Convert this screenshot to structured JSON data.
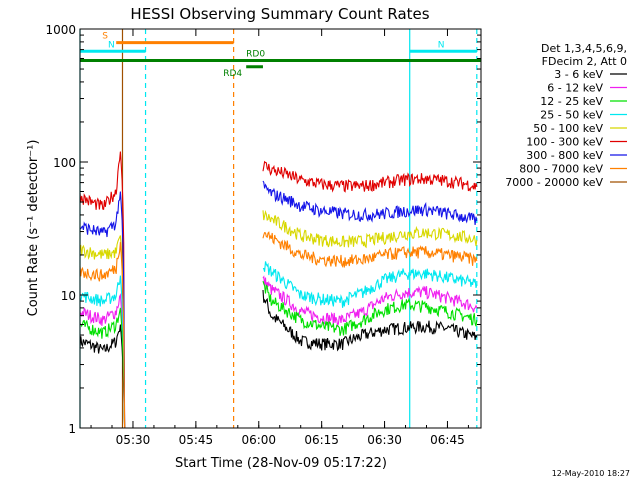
{
  "chart_data": {
    "type": "line",
    "title": "HESSI Observing Summary Count Rates",
    "xlabel": "Start Time (28-Nov-09 05:17:22)",
    "ylabel": "Count Rate (s⁻¹ detector⁻¹)",
    "yscale": "log",
    "ylim": [
      1,
      1000
    ],
    "xlim": [
      "05:17:22",
      "06:53:00"
    ],
    "x_ticks": [
      "05:30",
      "05:45",
      "06:00",
      "06:15",
      "06:30",
      "06:45"
    ],
    "y_ticks": [
      "1",
      "10",
      "100",
      "1000"
    ],
    "legend_header": [
      "Det 1,3,4,5,6,9,",
      "FDecim 2, Att 0"
    ],
    "footer_date": "12-May-2010 18:27",
    "series": [
      {
        "name": "3 - 6 keV",
        "color": "#000000",
        "points": [
          [
            "05:17:22",
            4.5
          ],
          [
            "05:20",
            4.2
          ],
          [
            "05:23",
            3.8
          ],
          [
            "05:26",
            4.5
          ],
          [
            "05:27",
            6
          ],
          [
            "05:28",
            1.0
          ],
          [
            "05:50",
            null
          ],
          [
            "06:01",
            10
          ],
          [
            "06:03",
            7
          ],
          [
            "06:07",
            5.5
          ],
          [
            "06:10",
            4.5
          ],
          [
            "06:15",
            4.3
          ],
          [
            "06:20",
            4.3
          ],
          [
            "06:25",
            5.0
          ],
          [
            "06:30",
            5.5
          ],
          [
            "06:35",
            5.7
          ],
          [
            "06:40",
            5.8
          ],
          [
            "06:45",
            5.6
          ],
          [
            "06:50",
            5.0
          ],
          [
            "06:52",
            4.8
          ]
        ]
      },
      {
        "name": "6 - 12 keV",
        "color": "#f020f0",
        "points": [
          [
            "05:17:22",
            7.5
          ],
          [
            "05:20",
            7.0
          ],
          [
            "05:23",
            6.5
          ],
          [
            "05:26",
            7.5
          ],
          [
            "05:27",
            10
          ],
          [
            "05:28",
            1.0
          ],
          [
            "05:50",
            null
          ],
          [
            "06:01",
            13
          ],
          [
            "06:03",
            11
          ],
          [
            "06:07",
            9
          ],
          [
            "06:10",
            7.5
          ],
          [
            "06:15",
            6.8
          ],
          [
            "06:20",
            6.5
          ],
          [
            "06:25",
            7.5
          ],
          [
            "06:30",
            9.5
          ],
          [
            "06:35",
            10.5
          ],
          [
            "06:40",
            10.5
          ],
          [
            "06:45",
            9.5
          ],
          [
            "06:50",
            8.5
          ],
          [
            "06:52",
            8.0
          ]
        ]
      },
      {
        "name": "12 - 25 keV",
        "color": "#00e000",
        "points": [
          [
            "05:17:22",
            6.0
          ],
          [
            "05:20",
            5.6
          ],
          [
            "05:23",
            5.2
          ],
          [
            "05:26",
            6.0
          ],
          [
            "05:27",
            8
          ],
          [
            "05:28",
            1.0
          ],
          [
            "05:50",
            null
          ],
          [
            "06:01",
            12
          ],
          [
            "06:03",
            9
          ],
          [
            "06:07",
            7.5
          ],
          [
            "06:10",
            6.5
          ],
          [
            "06:15",
            5.8
          ],
          [
            "06:20",
            5.5
          ],
          [
            "06:25",
            6.5
          ],
          [
            "06:30",
            7.8
          ],
          [
            "06:35",
            8.5
          ],
          [
            "06:40",
            8.2
          ],
          [
            "06:45",
            7.5
          ],
          [
            "06:50",
            6.8
          ],
          [
            "06:52",
            6.5
          ]
        ]
      },
      {
        "name": "25 - 50 keV",
        "color": "#00e8f0",
        "points": [
          [
            "05:17:22",
            10
          ],
          [
            "05:20",
            9.5
          ],
          [
            "05:23",
            9
          ],
          [
            "05:26",
            10
          ],
          [
            "05:27",
            14
          ],
          [
            "05:28",
            1.0
          ],
          [
            "05:50",
            null
          ],
          [
            "06:01",
            17
          ],
          [
            "06:03",
            15
          ],
          [
            "06:07",
            12
          ],
          [
            "06:10",
            10
          ],
          [
            "06:15",
            9.3
          ],
          [
            "06:20",
            9.0
          ],
          [
            "06:25",
            10.5
          ],
          [
            "06:30",
            13
          ],
          [
            "06:35",
            14.5
          ],
          [
            "06:40",
            14.5
          ],
          [
            "06:45",
            13.5
          ],
          [
            "06:50",
            12.5
          ],
          [
            "06:52",
            12
          ]
        ]
      },
      {
        "name": "50 - 100 keV",
        "color": "#d8d800",
        "points": [
          [
            "05:17:22",
            22
          ],
          [
            "05:20",
            21
          ],
          [
            "05:23",
            20
          ],
          [
            "05:26",
            21
          ],
          [
            "05:27",
            28
          ],
          [
            "05:28",
            1.0
          ],
          [
            "05:50",
            null
          ],
          [
            "06:01",
            40
          ],
          [
            "06:03",
            37
          ],
          [
            "06:07",
            32
          ],
          [
            "06:10",
            28
          ],
          [
            "06:15",
            26
          ],
          [
            "06:20",
            25
          ],
          [
            "06:25",
            25.5
          ],
          [
            "06:30",
            27
          ],
          [
            "06:35",
            29
          ],
          [
            "06:40",
            29.5
          ],
          [
            "06:45",
            28.5
          ],
          [
            "06:50",
            27
          ],
          [
            "06:52",
            26
          ]
        ]
      },
      {
        "name": "100 - 300 keV",
        "color": "#e00000",
        "points": [
          [
            "05:17:22",
            55
          ],
          [
            "05:20",
            50
          ],
          [
            "05:23",
            46
          ],
          [
            "05:26",
            60
          ],
          [
            "05:27",
            120
          ],
          [
            "05:28",
            1.0
          ],
          [
            "05:50",
            null
          ],
          [
            "06:01",
            95
          ],
          [
            "06:03",
            88
          ],
          [
            "06:07",
            80
          ],
          [
            "06:10",
            73
          ],
          [
            "06:15",
            68
          ],
          [
            "06:20",
            66
          ],
          [
            "06:25",
            66
          ],
          [
            "06:30",
            70
          ],
          [
            "06:35",
            74
          ],
          [
            "06:40",
            75
          ],
          [
            "06:45",
            72
          ],
          [
            "06:50",
            68
          ],
          [
            "06:52",
            65
          ]
        ]
      },
      {
        "name": "300 - 800 keV",
        "color": "#1414e8",
        "points": [
          [
            "05:17:22",
            33
          ],
          [
            "05:20",
            31
          ],
          [
            "05:23",
            29
          ],
          [
            "05:26",
            35
          ],
          [
            "05:27",
            60
          ],
          [
            "05:28",
            1.0
          ],
          [
            "05:50",
            null
          ],
          [
            "06:01",
            65
          ],
          [
            "06:03",
            58
          ],
          [
            "06:07",
            52
          ],
          [
            "06:10",
            47
          ],
          [
            "06:15",
            43
          ],
          [
            "06:20",
            41
          ],
          [
            "06:25",
            40
          ],
          [
            "06:30",
            41
          ],
          [
            "06:35",
            43
          ],
          [
            "06:40",
            44
          ],
          [
            "06:45",
            41
          ],
          [
            "06:50",
            38
          ],
          [
            "06:52",
            36
          ]
        ]
      },
      {
        "name": "800 - 7000 keV",
        "color": "#ff8000",
        "points": [
          [
            "05:17:22",
            15
          ],
          [
            "05:20",
            14.5
          ],
          [
            "05:23",
            14
          ],
          [
            "05:26",
            16
          ],
          [
            "05:27",
            25
          ],
          [
            "05:28",
            1.0
          ],
          [
            "05:50",
            null
          ],
          [
            "06:01",
            30
          ],
          [
            "06:03",
            27
          ],
          [
            "06:07",
            23
          ],
          [
            "06:10",
            20
          ],
          [
            "06:15",
            18.5
          ],
          [
            "06:20",
            18
          ],
          [
            "06:25",
            18.5
          ],
          [
            "06:30",
            20
          ],
          [
            "06:35",
            21
          ],
          [
            "06:40",
            21
          ],
          [
            "06:45",
            20
          ],
          [
            "06:50",
            19
          ],
          [
            "06:52",
            18
          ]
        ]
      },
      {
        "name": "7000 - 20000 keV",
        "color": "#a05000",
        "points": []
      }
    ],
    "attenuator_flags": [
      {
        "label": "S",
        "color": "#ff8000",
        "start": "05:26",
        "end": "05:54",
        "level": 790
      },
      {
        "label": "N",
        "color": "#00e8f0",
        "start": "05:17:22",
        "end": "05:33",
        "level": 680
      },
      {
        "label": "N",
        "color": "#00e8f0",
        "start": "06:36",
        "end": "06:52",
        "level": 680
      },
      {
        "label": "RD0",
        "color": "#008000",
        "start": "05:17:22",
        "end": "06:53",
        "level": 580
      },
      {
        "label": "RD4",
        "color": "#008000",
        "start": "05:57",
        "end": "06:01",
        "level": 520
      }
    ],
    "vertical_markers": [
      {
        "time": "05:17:22",
        "color": "#00e8f0",
        "style": "solid"
      },
      {
        "time": "05:27:30",
        "color": "#a05000",
        "style": "solid"
      },
      {
        "time": "05:33",
        "color": "#00e8f0",
        "style": "dashed"
      },
      {
        "time": "05:54",
        "color": "#ff8000",
        "style": "dashed"
      },
      {
        "time": "06:36",
        "color": "#00e8f0",
        "style": "solid"
      },
      {
        "time": "06:52",
        "color": "#00e8f0",
        "style": "dashed"
      }
    ]
  }
}
